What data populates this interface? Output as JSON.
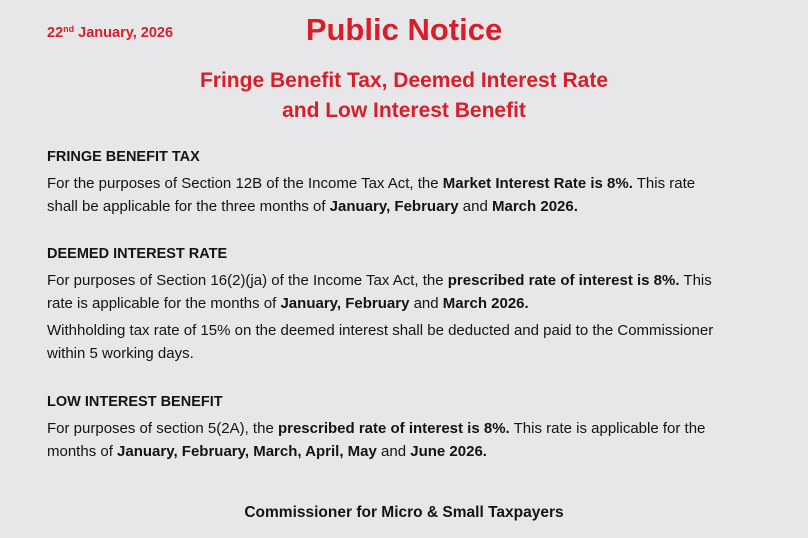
{
  "header": {
    "date_day": "22",
    "date_suffix": "nd",
    "date_rest": " January, 2026",
    "title": "Public Notice",
    "subtitle_line1": "Fringe Benefit Tax, Deemed Interest Rate",
    "subtitle_line2": "and Low Interest Benefit"
  },
  "colors": {
    "accent": "#d81e2b",
    "background": "#e7e7e9",
    "text": "#141414"
  },
  "sections": [
    {
      "heading": "FRINGE BENEFIT TAX",
      "paragraphs": [
        [
          [
            {
              "t": "For the purposes of Section 12B of the Income Tax Act, the "
            },
            {
              "t": "Market Interest Rate is 8%.",
              "b": true
            },
            {
              "t": "  This rate"
            }
          ],
          [
            {
              "t": "shall be applicable for the three months of "
            },
            {
              "t": "January, February",
              "b": true
            },
            {
              "t": " and "
            },
            {
              "t": "March 2026.",
              "b": true
            }
          ]
        ]
      ]
    },
    {
      "heading": "DEEMED INTEREST RATE",
      "paragraphs": [
        [
          [
            {
              "t": "For purposes of Section 16(2)(ja) of the Income Tax Act, the "
            },
            {
              "t": "prescribed rate of interest is 8%.",
              "b": true
            },
            {
              "t": " This"
            }
          ],
          [
            {
              "t": "rate is applicable for the months of "
            },
            {
              "t": "January, February",
              "b": true
            },
            {
              "t": " and "
            },
            {
              "t": "March 2026.",
              "b": true
            }
          ]
        ],
        [
          [
            {
              "t": "Withholding tax rate of 15% on the deemed interest shall be deducted and paid to the Commissioner"
            }
          ],
          [
            {
              "t": "within 5 working days."
            }
          ]
        ]
      ]
    },
    {
      "heading": "LOW INTEREST BENEFIT",
      "paragraphs": [
        [
          [
            {
              "t": "For purposes of section 5(2A), the "
            },
            {
              "t": "prescribed rate of interest is 8%.",
              "b": true
            },
            {
              "t": " This rate is applicable for the"
            }
          ],
          [
            {
              "t": "months of "
            },
            {
              "t": "January, February, March, April, May",
              "b": true
            },
            {
              "t": " and "
            },
            {
              "t": "June 2026.",
              "b": true
            }
          ]
        ]
      ]
    }
  ],
  "footer": {
    "signature": "Commissioner for Micro & Small Taxpayers"
  }
}
